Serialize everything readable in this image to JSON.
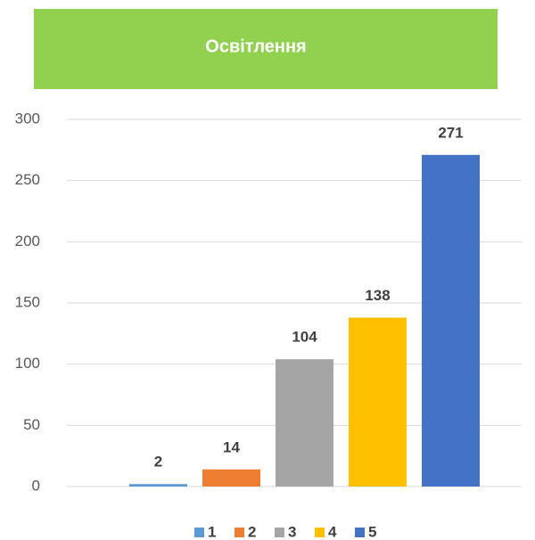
{
  "chart_data": {
    "type": "bar",
    "title": "Освітлення",
    "series": [
      {
        "name": "1",
        "color": "#5b9bd5",
        "values": [
          2
        ]
      },
      {
        "name": "2",
        "color": "#ed7d31",
        "values": [
          14
        ]
      },
      {
        "name": "3",
        "color": "#a5a5a5",
        "values": [
          104
        ]
      },
      {
        "name": "4",
        "color": "#ffc000",
        "values": [
          138
        ]
      },
      {
        "name": "5",
        "color": "#4472c4",
        "values": [
          271
        ]
      }
    ],
    "ylim": [
      0,
      300
    ],
    "yticks": [
      0,
      50,
      100,
      150,
      200,
      250,
      300
    ],
    "grid": true
  }
}
